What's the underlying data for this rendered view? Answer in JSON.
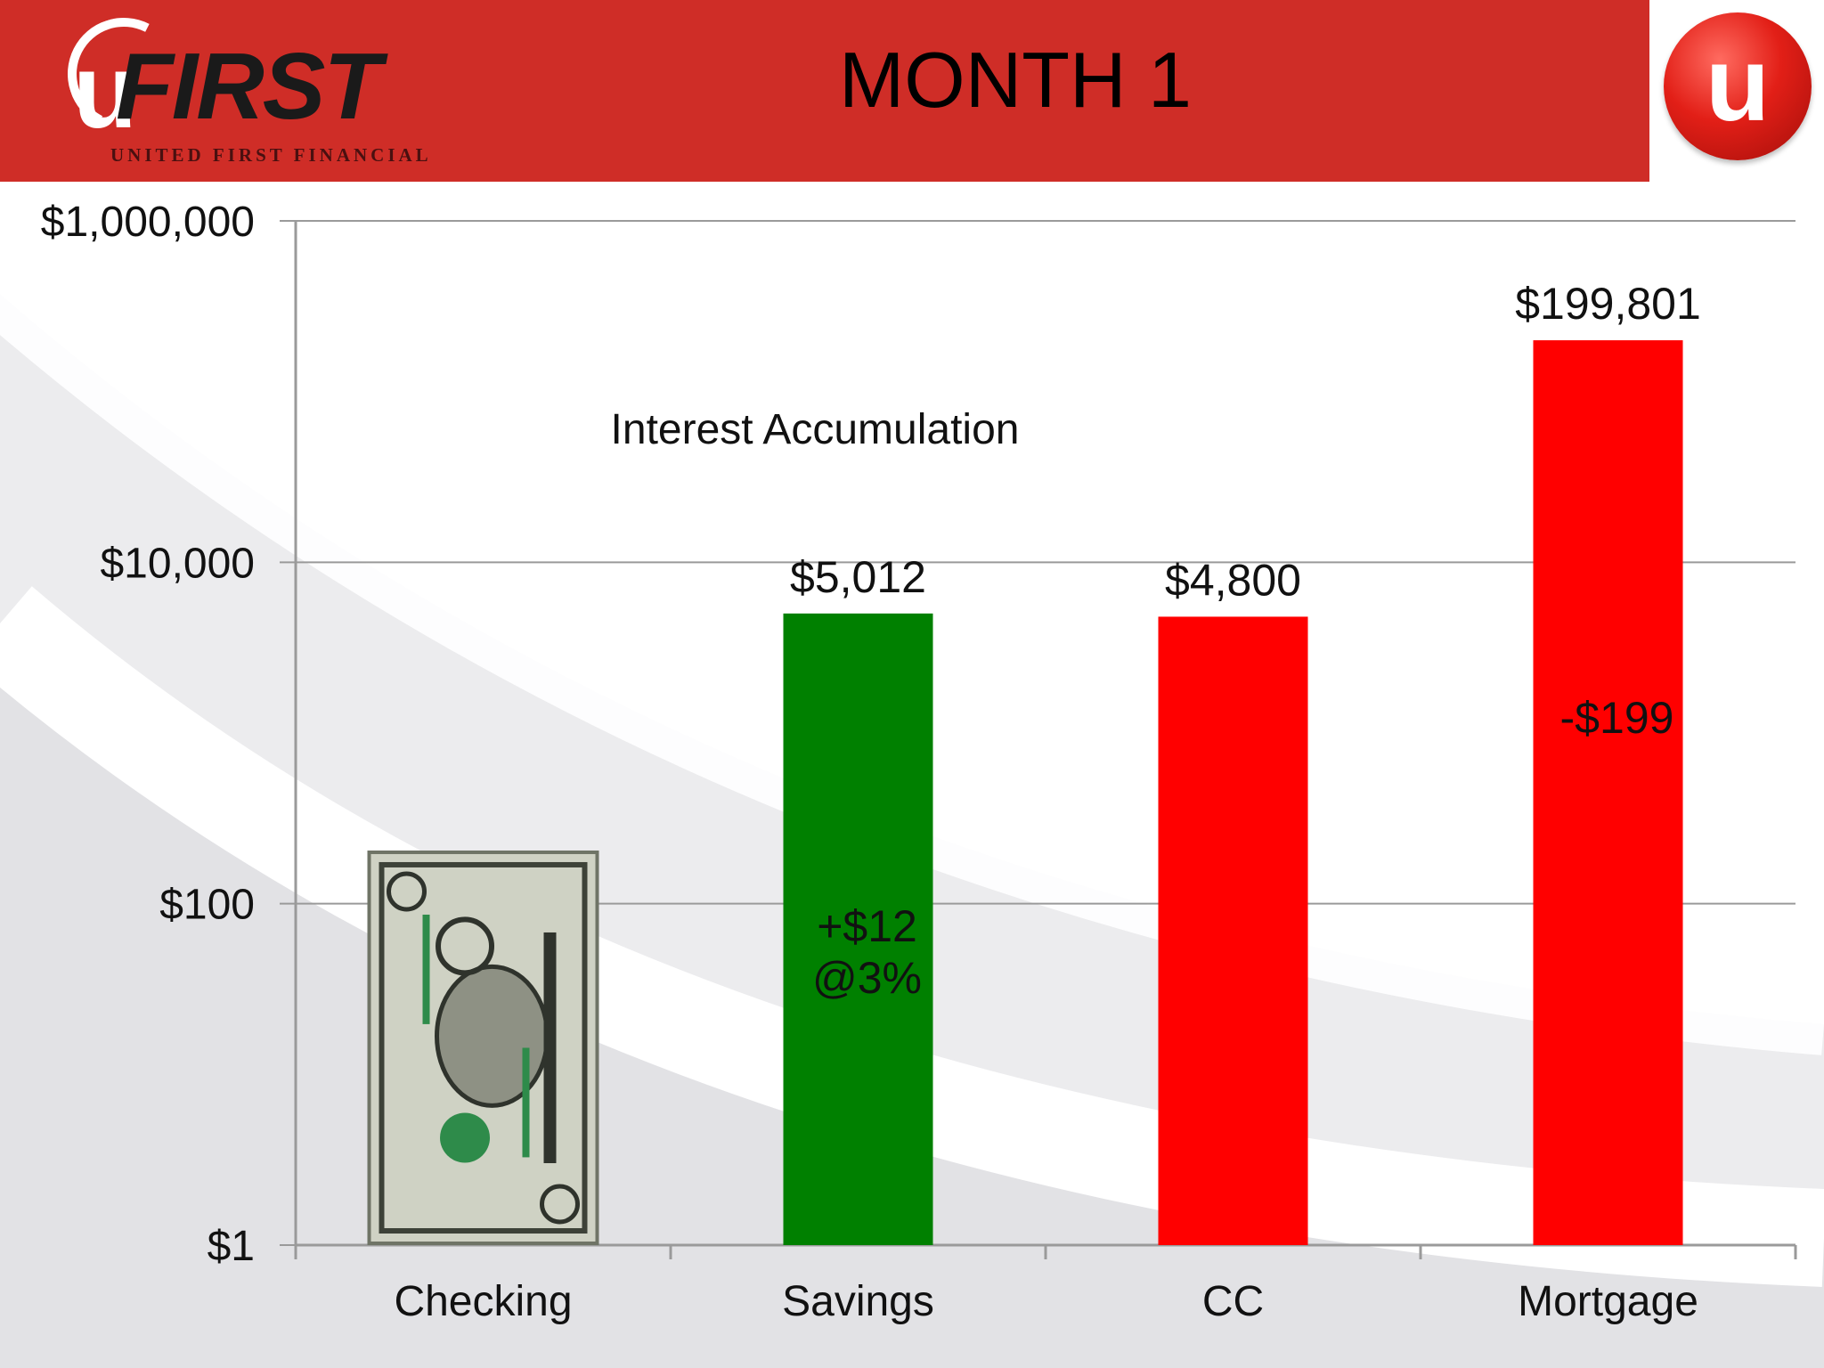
{
  "header": {
    "title": "MONTH 1",
    "logo_mark": "u",
    "logo_word": "FIRST",
    "logo_subtitle": "UNITED FIRST FINANCIAL",
    "corner_logo_mark": "u"
  },
  "colors": {
    "header_red": "#cf2d27",
    "savings_green": "#008000",
    "debt_red": "#ff0000"
  },
  "chart_data": {
    "type": "bar",
    "title": "Interest Accumulation",
    "y_scale": "log",
    "ylim": [
      1,
      1000000
    ],
    "y_ticks": [
      {
        "value": 1,
        "label": "$1"
      },
      {
        "value": 100,
        "label": "$100"
      },
      {
        "value": 10000,
        "label": "$10,000"
      },
      {
        "value": 1000000,
        "label": "$1,000,000"
      }
    ],
    "grid": true,
    "categories": [
      "Checking",
      "Savings",
      "CC",
      "Mortgage"
    ],
    "bars": [
      {
        "category": "Checking",
        "value": 1,
        "label": "",
        "color": "",
        "image": "one-dollar-bill",
        "image_value": 200
      },
      {
        "category": "Savings",
        "value": 5012,
        "label": "$5,012",
        "color": "#008000"
      },
      {
        "category": "CC",
        "value": 4800,
        "label": "$4,800",
        "color": "#ff0000"
      },
      {
        "category": "Mortgage",
        "value": 199801,
        "label": "$199,801",
        "color": "#ff0000"
      }
    ],
    "annotations": [
      {
        "category": "Savings",
        "lines": [
          "+$12",
          "@3%"
        ],
        "value": 60
      },
      {
        "category": "Mortgage",
        "lines": [
          "-$199"
        ],
        "value": 1000
      }
    ]
  }
}
